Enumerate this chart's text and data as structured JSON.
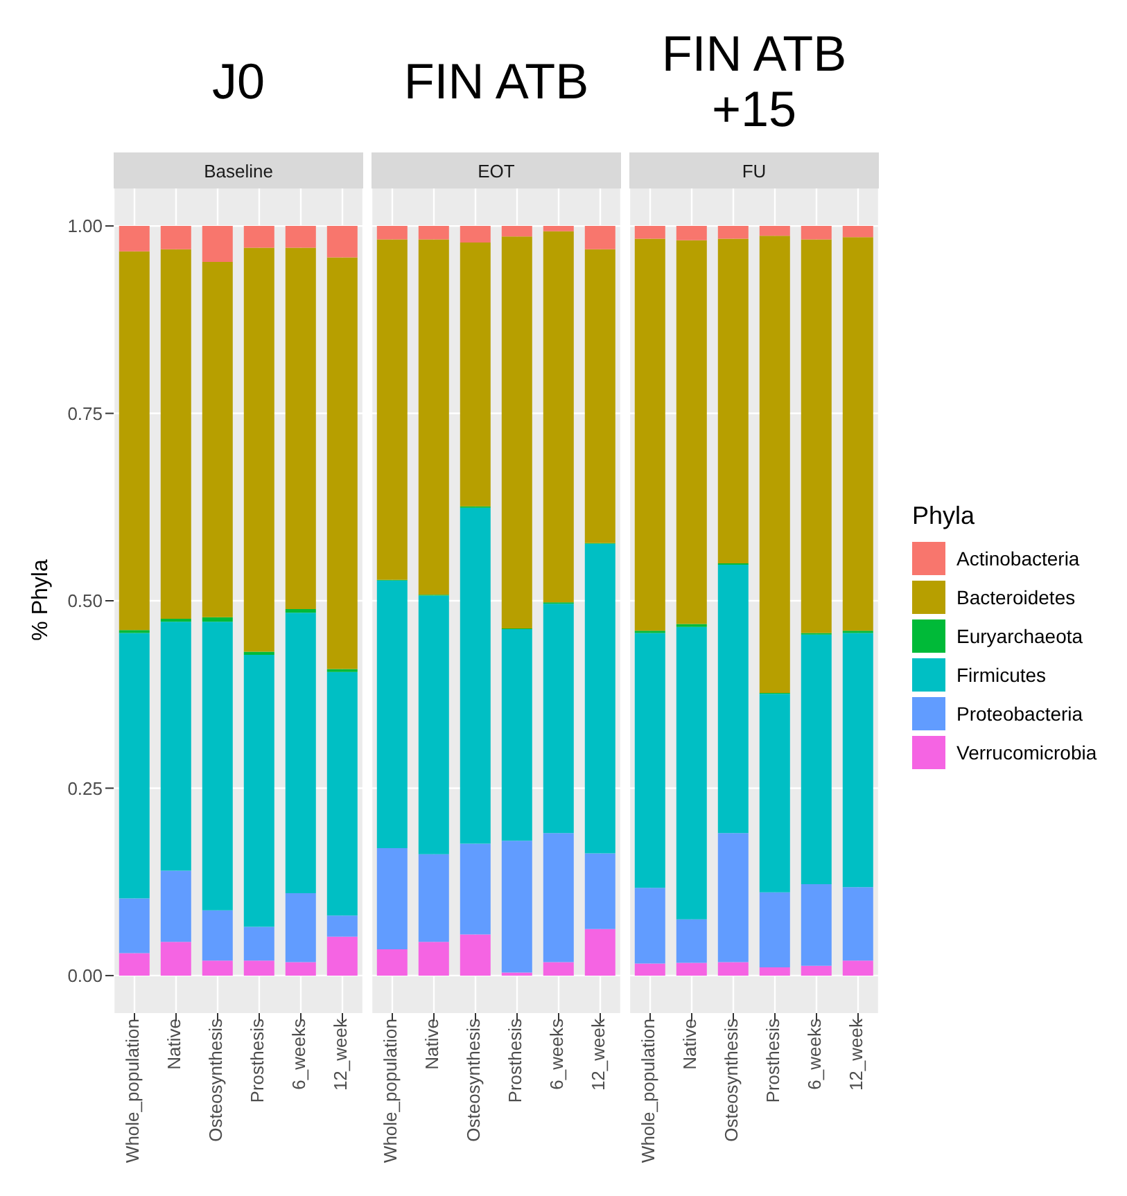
{
  "chart_data": [
    {
      "type": "bar",
      "title": "J0",
      "subtitle": "Baseline",
      "ylabel": "% Phyla",
      "stacked": true,
      "grid": true,
      "categories": [
        "Whole_population",
        "Native",
        "Osteosynthesis",
        "Prosthesis",
        "6_weeks",
        "12_week"
      ],
      "ylim": [
        -0.05,
        1.05
      ],
      "yticks": [
        {
          "value": 0,
          "label": "0.00"
        },
        {
          "value": 0.25,
          "label": "0.25"
        },
        {
          "value": 0.5,
          "label": "0.50"
        },
        {
          "value": 0.75,
          "label": "0.75"
        },
        {
          "value": 1,
          "label": "1.00"
        }
      ],
      "series": [
        {
          "color": "#f564e3",
          "values": [
            0.03,
            0.045,
            0.02,
            0.02,
            0.018,
            0.052
          ]
        },
        {
          "color": "#619cff",
          "values": [
            0.073,
            0.095,
            0.067,
            0.045,
            0.092,
            0.028
          ]
        },
        {
          "color": "#00bfc4",
          "values": [
            0.354,
            0.332,
            0.385,
            0.363,
            0.374,
            0.325
          ]
        },
        {
          "color": "#00ba38",
          "values": [
            0.004,
            0.004,
            0.006,
            0.004,
            0.005,
            0.004
          ]
        },
        {
          "color": "#b79f00",
          "values": [
            0.505,
            0.493,
            0.474,
            0.539,
            0.482,
            0.549
          ]
        },
        {
          "color": "#f8766d",
          "values": [
            0.034,
            0.031,
            0.048,
            0.029,
            0.029,
            0.042
          ]
        }
      ]
    },
    {
      "type": "bar",
      "title": "FIN ATB",
      "subtitle": "EOT",
      "stacked": true,
      "grid": true,
      "tick_labels": "x",
      "categories": [
        "Whole_population",
        "Native",
        "Osteosynthesis",
        "Prosthesis",
        "6_weeks",
        "12_week"
      ],
      "ylim": [
        -0.05,
        1.05
      ],
      "yticks": [
        0,
        0.25,
        0.5,
        0.75,
        1
      ],
      "series": [
        {
          "color": "#f564e3",
          "values": [
            0.035,
            0.045,
            0.055,
            0.004,
            0.018,
            0.062
          ]
        },
        {
          "color": "#619cff",
          "values": [
            0.135,
            0.117,
            0.121,
            0.176,
            0.172,
            0.101
          ]
        },
        {
          "color": "#00bfc4",
          "values": [
            0.357,
            0.345,
            0.448,
            0.282,
            0.306,
            0.413
          ]
        },
        {
          "color": "#00ba38",
          "values": [
            0.001,
            0.001,
            0.002,
            0.001,
            0.002,
            0.001
          ]
        },
        {
          "color": "#b79f00",
          "values": [
            0.454,
            0.474,
            0.352,
            0.523,
            0.495,
            0.392
          ]
        },
        {
          "color": "#f8766d",
          "values": [
            0.018,
            0.018,
            0.022,
            0.014,
            0.007,
            0.031
          ]
        }
      ]
    },
    {
      "type": "bar",
      "title": "FIN ATB +15",
      "subtitle": "FU",
      "stacked": true,
      "grid": true,
      "tick_labels": "x",
      "legend": "right",
      "legend_title": "Phyla",
      "categories": [
        "Whole_population",
        "Native",
        "Osteosynthesis",
        "Prosthesis",
        "6_weeks",
        "12_week"
      ],
      "ylim": [
        -0.05,
        1.05
      ],
      "yticks": [
        0,
        0.25,
        0.5,
        0.75,
        1
      ],
      "series": [
        {
          "name": "Verrucomicrobia",
          "color": "#f564e3",
          "values": [
            0.016,
            0.017,
            0.018,
            0.011,
            0.013,
            0.02
          ]
        },
        {
          "name": "Proteobacteria",
          "color": "#619cff",
          "values": [
            0.101,
            0.058,
            0.172,
            0.1,
            0.109,
            0.098
          ]
        },
        {
          "name": "Firmicutes",
          "color": "#00bfc4",
          "values": [
            0.34,
            0.39,
            0.358,
            0.265,
            0.333,
            0.339
          ]
        },
        {
          "name": "Euryarchaeota",
          "color": "#00ba38",
          "values": [
            0.003,
            0.004,
            0.002,
            0.001,
            0.002,
            0.003
          ]
        },
        {
          "name": "Bacteroidetes",
          "color": "#b79f00",
          "values": [
            0.523,
            0.512,
            0.433,
            0.61,
            0.525,
            0.525
          ]
        },
        {
          "name": "Actinobacteria",
          "color": "#f8766d",
          "values": [
            0.017,
            0.019,
            0.017,
            0.013,
            0.018,
            0.015
          ]
        }
      ]
    }
  ]
}
